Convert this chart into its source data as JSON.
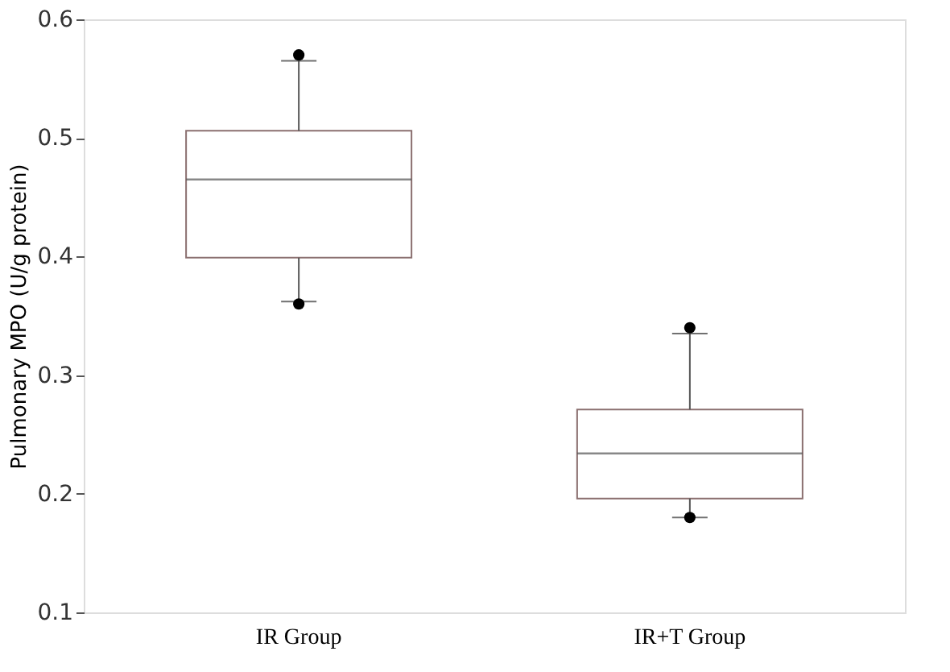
{
  "chart_data": {
    "type": "box",
    "ylabel": "Pulmonary MPO (U/g protein)",
    "categories": [
      "IR Group",
      "IR+T Group"
    ],
    "boxes": [
      {
        "low": 0.362,
        "q1": 0.399,
        "median": 0.465,
        "q3": 0.506,
        "high": 0.565,
        "outliers": [
          0.57,
          0.36
        ]
      },
      {
        "low": 0.18,
        "q1": 0.196,
        "median": 0.234,
        "q3": 0.271,
        "high": 0.335,
        "outliers": [
          0.34,
          0.18
        ]
      }
    ],
    "ylim": [
      0.1,
      0.6
    ],
    "yticks": [
      0.1,
      0.2,
      0.3,
      0.4,
      0.5,
      0.6
    ],
    "grid": false
  }
}
